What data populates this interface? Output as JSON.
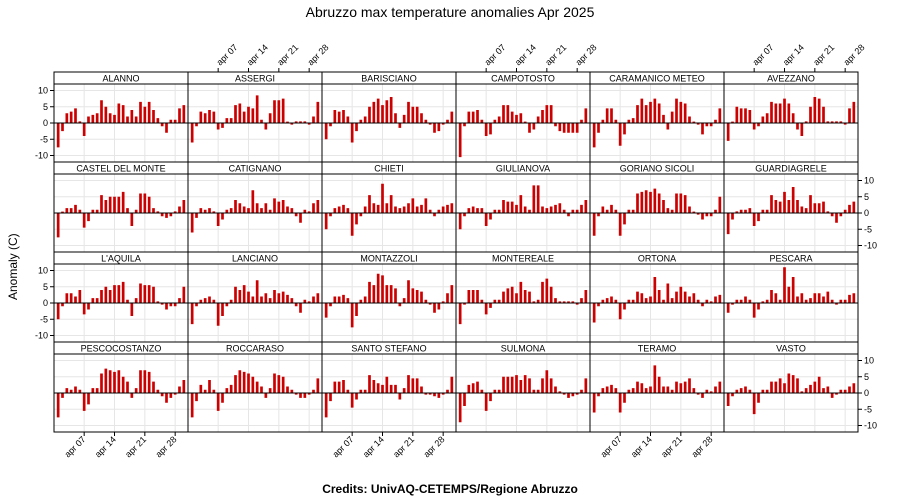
{
  "chart_data": {
    "type": "bar",
    "title": "Abruzzo max temperature anomalies Apr 2025",
    "ylabel": "Anomaly (C)",
    "caption": "Credits: UnivAQ-CETEMPS/Regione Abruzzo",
    "x_dates": [
      "2025-04-01",
      "2025-04-02",
      "2025-04-03",
      "2025-04-04",
      "2025-04-05",
      "2025-04-06",
      "2025-04-07",
      "2025-04-08",
      "2025-04-09",
      "2025-04-10",
      "2025-04-11",
      "2025-04-12",
      "2025-04-13",
      "2025-04-14",
      "2025-04-15",
      "2025-04-16",
      "2025-04-17",
      "2025-04-18",
      "2025-04-19",
      "2025-04-20",
      "2025-04-21",
      "2025-04-22",
      "2025-04-23",
      "2025-04-24",
      "2025-04-25",
      "2025-04-26",
      "2025-04-27",
      "2025-04-28",
      "2025-04-29",
      "2025-04-30"
    ],
    "x_ticks": [
      "apr 07",
      "apr 14",
      "apr 21",
      "apr 28"
    ],
    "y_ticks": [
      -10,
      -5,
      0,
      5,
      10
    ],
    "ylim": [
      -12,
      12
    ],
    "bar_color": "#cc0000",
    "grid": true,
    "layout": {
      "columns": 6,
      "rows": 4
    },
    "panels": [
      {
        "name": "ALANNO",
        "values": [
          -7.5,
          -2.5,
          3,
          3.5,
          4.5,
          0.5,
          -4,
          2,
          2.5,
          3,
          7,
          5,
          3,
          2.5,
          6,
          5.5,
          2,
          4,
          2,
          6.5,
          5,
          6.5,
          4,
          1.5,
          -1,
          -3,
          1,
          1,
          4.5,
          5.5
        ]
      },
      {
        "name": "ASSERGI",
        "values": [
          -6,
          -1,
          3.5,
          3,
          4,
          3.5,
          -2,
          -1.5,
          1.5,
          1.5,
          5.5,
          6,
          3.5,
          5,
          4.5,
          8.5,
          1,
          -2,
          3,
          7,
          7,
          7.5,
          0,
          -0.5,
          0.5,
          0.5,
          0.5,
          -0.5,
          2,
          6.5
        ]
      },
      {
        "name": "BARISCIANO",
        "values": [
          -5,
          -1,
          4,
          3.5,
          4,
          2,
          -6,
          -2.5,
          1,
          2,
          5,
          6.5,
          7.5,
          5.5,
          7,
          8,
          3,
          -1.5,
          2.5,
          6.5,
          5,
          5,
          3,
          1,
          -0.5,
          -3,
          -2.5,
          -0.5,
          1,
          3.5
        ]
      },
      {
        "name": "CAMPOTOSTO",
        "values": [
          -10.5,
          -1,
          3.5,
          3.5,
          4,
          1,
          -4,
          -3.5,
          1,
          2,
          5.5,
          5.5,
          3.5,
          2.5,
          3,
          0,
          -3,
          -2,
          2,
          4,
          5.5,
          5.5,
          -1,
          -2.5,
          -3,
          -3,
          -3,
          -3,
          1,
          4.5
        ]
      },
      {
        "name": "CARAMANICO METEO",
        "values": [
          -7.5,
          -3,
          1,
          4.5,
          4.5,
          1,
          -7,
          -3.5,
          1,
          1.5,
          5.5,
          7.5,
          5.5,
          6.5,
          7.5,
          6,
          2.5,
          -2,
          3.5,
          7.5,
          6.5,
          6,
          2,
          0,
          -0.5,
          -3.5,
          -1,
          -1,
          1,
          4.5
        ]
      },
      {
        "name": "AVEZZANO",
        "values": [
          -5.5,
          0,
          5,
          4.5,
          4.5,
          4,
          -2,
          -1,
          2,
          3,
          6.5,
          6,
          6,
          7.5,
          6,
          3,
          -2,
          -4,
          0.5,
          5,
          8,
          7.5,
          5,
          0.5,
          0.5,
          0.5,
          0.5,
          -0.5,
          4.5,
          6.5
        ]
      },
      {
        "name": "CASTEL DEL MONTE",
        "values": [
          -7.5,
          0,
          1.5,
          1.5,
          2.5,
          1,
          -4.5,
          -2.5,
          1,
          1,
          5.5,
          4,
          5,
          5,
          5,
          6.5,
          1.5,
          -4,
          1,
          6,
          6,
          5,
          1.5,
          0.5,
          -1,
          -1.5,
          -1,
          0.5,
          2,
          4
        ]
      },
      {
        "name": "CATIGNANO",
        "values": [
          -6,
          -1.5,
          1.5,
          1,
          1.5,
          0.5,
          -4,
          -2,
          1,
          1.5,
          4,
          3,
          2,
          1.5,
          7,
          3,
          1.5,
          3,
          1,
          4.5,
          3.5,
          4,
          2,
          1.5,
          -1,
          -3,
          1,
          0.5,
          3,
          4
        ]
      },
      {
        "name": "CHIETI",
        "values": [
          -5,
          -1,
          1.5,
          2,
          2.5,
          1.5,
          -7,
          -3.5,
          -1,
          2,
          5.5,
          3,
          2.5,
          9,
          3,
          5.5,
          2,
          1.5,
          2,
          3,
          4.5,
          2,
          2.5,
          4.5,
          1,
          -1,
          1,
          2,
          2.5,
          3
        ]
      },
      {
        "name": "GIULIANOVA",
        "values": [
          -5,
          -1,
          1.5,
          2,
          1.5,
          1.5,
          -4,
          -2,
          1,
          1,
          4,
          3.5,
          3.5,
          2.5,
          5.5,
          2,
          1,
          8.5,
          8.5,
          2,
          1.5,
          2,
          2.5,
          3,
          1,
          -1,
          1,
          1,
          2.5,
          4
        ]
      },
      {
        "name": "GORIANO SICOLI",
        "values": [
          -7,
          -1,
          2,
          1,
          2.5,
          1,
          -7,
          -3.5,
          1,
          1,
          6,
          6.5,
          7,
          6.5,
          7.5,
          6,
          4,
          1.5,
          1,
          6,
          6,
          5.5,
          2,
          0,
          -0.5,
          -2,
          -1,
          -1,
          1,
          5
        ]
      },
      {
        "name": "GUARDIAGRELE",
        "values": [
          -6.5,
          -2,
          0.5,
          1,
          1,
          1.5,
          -4,
          -2.5,
          1,
          1,
          5.5,
          4,
          3.5,
          6.5,
          4,
          8,
          4,
          2,
          1.5,
          5.5,
          3,
          3,
          3.5,
          0.5,
          -1,
          -3,
          -1,
          1,
          2.5,
          3.5
        ]
      },
      {
        "name": "L'AQUILA",
        "values": [
          -5,
          -1,
          3,
          3,
          2,
          4,
          -3.5,
          -2,
          1.5,
          1.5,
          4,
          5,
          4,
          5.5,
          5.5,
          6.5,
          1,
          -4,
          1.5,
          6,
          5.5,
          5.5,
          5,
          0.5,
          -0.5,
          -2,
          -1,
          -1,
          1.5,
          5
        ]
      },
      {
        "name": "LANCIANO",
        "values": [
          -6.5,
          -1,
          1,
          1.5,
          2,
          1,
          -7,
          -4,
          -1,
          1,
          5,
          4,
          5.5,
          3.5,
          2,
          7,
          2,
          3,
          1.5,
          4,
          3,
          3.5,
          2.5,
          1.5,
          -1,
          -3,
          1,
          0.5,
          2,
          3
        ]
      },
      {
        "name": "MONTAZZOLI",
        "values": [
          -4.5,
          -1,
          2,
          2,
          2.5,
          1.5,
          -7.5,
          -4,
          1,
          2,
          6.5,
          5.5,
          9,
          8.5,
          5.5,
          5.5,
          4.5,
          -1,
          1.5,
          7,
          4.5,
          4,
          3.5,
          1,
          -0.5,
          -3,
          -2,
          0.5,
          3,
          5.5
        ]
      },
      {
        "name": "MONTEREALE",
        "values": [
          -6.5,
          -0.5,
          4,
          4,
          4,
          1,
          -3.5,
          -1.5,
          1,
          1,
          3.5,
          4.5,
          5,
          3,
          6.5,
          4,
          3.5,
          0.5,
          1,
          6.5,
          7.5,
          5,
          1.5,
          0.5,
          0.5,
          0.5,
          0.5,
          -0.5,
          1.5,
          4
        ]
      },
      {
        "name": "ORTONA",
        "values": [
          -6,
          -1,
          1,
          1.5,
          2,
          1,
          -5,
          -2,
          1,
          1,
          3.5,
          3,
          1.5,
          2,
          8,
          4,
          1,
          6,
          1.5,
          3.5,
          5,
          3.5,
          2,
          3,
          1,
          -1,
          1,
          0.5,
          2,
          2.5
        ]
      },
      {
        "name": "PESCARA",
        "values": [
          -3,
          -0.5,
          1,
          1,
          2,
          1,
          -4.5,
          -2,
          0.5,
          1,
          4,
          3,
          1,
          11,
          5,
          8,
          2,
          3,
          1,
          1.5,
          3,
          3,
          2,
          3.5,
          1,
          -0.5,
          1,
          1,
          2.5,
          3
        ]
      },
      {
        "name": "PESCOCOSTANZO",
        "values": [
          -7.5,
          -1.5,
          1.5,
          1,
          2,
          1,
          -5.5,
          -3.5,
          1.5,
          1.5,
          6,
          7.5,
          7,
          6.5,
          7,
          5,
          3.5,
          -1.5,
          1.5,
          7,
          7,
          6.5,
          3.5,
          1,
          -1,
          -3,
          -1.5,
          -0.5,
          2,
          4
        ]
      },
      {
        "name": "ROCCARASO",
        "values": [
          -7.5,
          -2.5,
          2.5,
          1,
          4,
          1,
          -5.5,
          -3,
          1.5,
          2.5,
          5.5,
          7,
          6.5,
          6,
          5,
          3.5,
          2,
          -1.5,
          1.5,
          6,
          5.5,
          5,
          2,
          1,
          -0.5,
          -1.5,
          -1.5,
          -0.5,
          1,
          4.5
        ]
      },
      {
        "name": "SANTO STEFANO",
        "values": [
          -7.5,
          -2.5,
          3.5,
          3.5,
          4,
          1,
          -4.5,
          -2,
          1,
          1,
          5.5,
          4,
          3,
          2.5,
          5,
          2.5,
          2.5,
          -2,
          1.5,
          5.5,
          4.5,
          4.5,
          2,
          -0.5,
          -0.5,
          -1,
          -1.5,
          -0.5,
          1,
          5
        ]
      },
      {
        "name": "SULMONA",
        "values": [
          -9,
          -4,
          2.5,
          3,
          3.5,
          1,
          -5.5,
          -2.5,
          1,
          1,
          5,
          5,
          5,
          5.5,
          4,
          5.5,
          4.5,
          1,
          1,
          4.5,
          7,
          4.5,
          2,
          0.5,
          -0.5,
          -1.5,
          -1,
          -0.5,
          1,
          4.5
        ]
      },
      {
        "name": "TERAMO",
        "values": [
          -6,
          -1,
          1.5,
          2,
          2.5,
          1.5,
          -6,
          -3,
          1,
          1.5,
          3.5,
          3,
          1.5,
          2,
          8.5,
          5,
          2,
          2,
          1,
          3.5,
          3,
          3.5,
          4.5,
          1.5,
          -0.5,
          -1.5,
          1,
          0.5,
          2,
          3.5
        ]
      },
      {
        "name": "VASTO",
        "values": [
          -4,
          -1,
          1,
          1.5,
          2,
          1,
          -6.5,
          -3,
          1,
          1,
          3.5,
          3.5,
          4.5,
          3,
          6,
          5.5,
          4.5,
          0.5,
          1.5,
          2.5,
          3.5,
          5,
          1.5,
          2,
          -1.5,
          -0.5,
          1,
          1,
          2,
          3
        ]
      }
    ]
  }
}
